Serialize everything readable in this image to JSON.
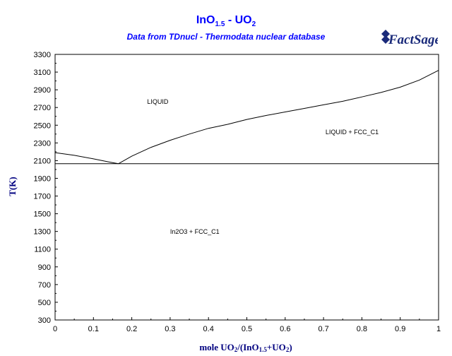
{
  "title": {
    "main": "InO",
    "main_sub": "1.5",
    "sep": " - UO",
    "sep_sub": "2"
  },
  "subtitle": "Data from TDnucl - Thermodata nuclear database",
  "logo": {
    "text": "FactSage",
    "icon": "factsage-logo"
  },
  "chart_data": {
    "type": "line",
    "xlabel": "mole UO2/(InO1.5+UO2)",
    "xlabel_parts": [
      "mole UO",
      "2",
      "/(InO",
      "1.5",
      "+UO",
      "2",
      ")"
    ],
    "ylabel": "T(K)",
    "xlim": [
      0,
      1
    ],
    "ylim": [
      300,
      3300
    ],
    "x_ticks": [
      "0",
      "0.1",
      "0.2",
      "0.3",
      "0.4",
      "0.5",
      "0.6",
      "0.7",
      "0.8",
      "0.9",
      "1"
    ],
    "x_tick_values": [
      0,
      0.1,
      0.2,
      0.3,
      0.4,
      0.5,
      0.6,
      0.7,
      0.8,
      0.9,
      1.0
    ],
    "y_ticks": [
      "300",
      "500",
      "700",
      "900",
      "1100",
      "1300",
      "1500",
      "1700",
      "1900",
      "2100",
      "2300",
      "2500",
      "2700",
      "2900",
      "3100",
      "3300"
    ],
    "y_tick_values": [
      300,
      500,
      700,
      900,
      1100,
      1300,
      1500,
      1700,
      1900,
      2100,
      2300,
      2500,
      2700,
      2900,
      3100,
      3300
    ],
    "grid": false,
    "series": [
      {
        "x": [
          0.0,
          0.05,
          0.1,
          0.14,
          0.165
        ],
        "y": [
          2190,
          2160,
          2120,
          2085,
          2065
        ]
      },
      {
        "x": [
          0.165,
          0.2,
          0.25,
          0.3,
          0.35,
          0.4,
          0.45,
          0.5,
          0.55,
          0.6,
          0.65,
          0.7,
          0.75,
          0.8,
          0.85,
          0.9,
          0.95,
          1.0
        ],
        "y": [
          2065,
          2150,
          2250,
          2330,
          2400,
          2465,
          2510,
          2565,
          2610,
          2650,
          2690,
          2730,
          2770,
          2820,
          2870,
          2930,
          3010,
          3120
        ]
      },
      {
        "x": [
          0.0,
          1.0
        ],
        "y": [
          2065,
          2065
        ]
      }
    ],
    "annotations": [
      {
        "text": "LIQUID",
        "x": 0.24,
        "y": 2740
      },
      {
        "text": "LIQUID + FCC_C1",
        "x": 0.705,
        "y": 2400
      },
      {
        "text": "In2O3 + FCC_C1",
        "x": 0.3,
        "y": 1275
      }
    ]
  }
}
